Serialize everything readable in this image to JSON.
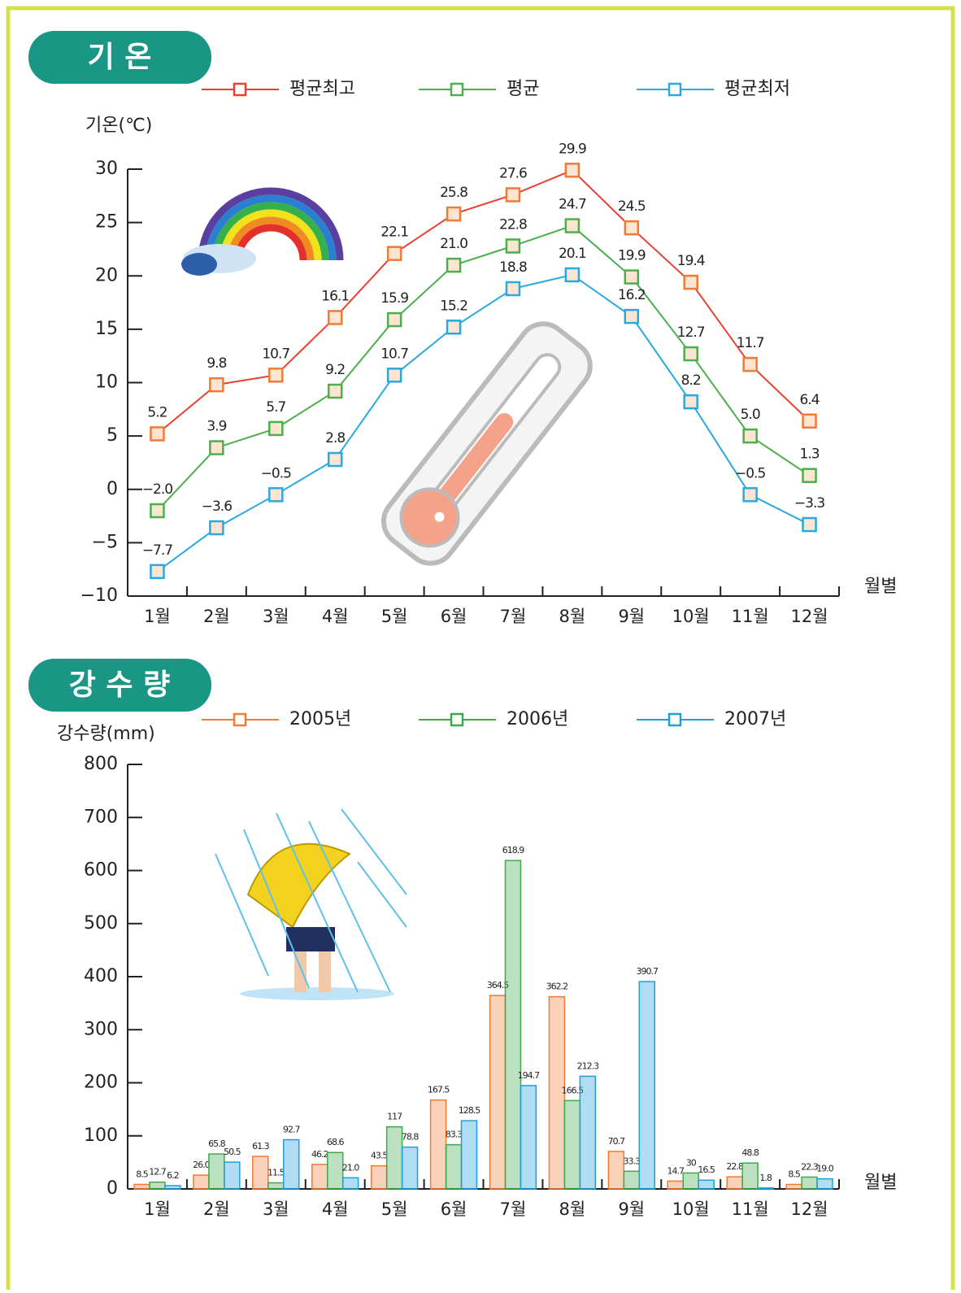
{
  "chart_data": [
    {
      "type": "line",
      "title": "기 온",
      "y_label": "기온(℃)",
      "x_label": "월별",
      "categories": [
        "1월",
        "2월",
        "3월",
        "4월",
        "5월",
        "6월",
        "7월",
        "8월",
        "9월",
        "10월",
        "11월",
        "12월"
      ],
      "series": [
        {
          "name": "평균최고",
          "color": "#e8412f",
          "values": [
            5.2,
            9.8,
            10.7,
            16.1,
            22.1,
            25.8,
            27.6,
            29.9,
            24.5,
            19.4,
            11.7,
            6.4
          ],
          "value_labels": [
            "5.2",
            "9.8",
            "10.7",
            "16.1",
            "22.1",
            "25.8",
            "27.6",
            "29.9",
            "24.5",
            "19.4",
            "11.7",
            "6.4"
          ]
        },
        {
          "name": "평균",
          "color": "#4cae4c",
          "values": [
            -2.0,
            3.9,
            5.7,
            9.2,
            15.9,
            21.0,
            22.8,
            24.7,
            19.9,
            12.7,
            5.0,
            1.3
          ],
          "value_labels": [
            "−2.0",
            "3.9",
            "5.7",
            "9.2",
            "15.9",
            "21.0",
            "22.8",
            "24.7",
            "19.9",
            "12.7",
            "5.0",
            "1.3"
          ]
        },
        {
          "name": "평균최저",
          "color": "#29a9e0",
          "values": [
            -7.7,
            -3.6,
            -0.5,
            2.8,
            10.7,
            15.2,
            18.8,
            20.1,
            16.2,
            8.2,
            -0.5,
            -3.3
          ],
          "value_labels": [
            "−7.7",
            "−3.6",
            "−0.5",
            "2.8",
            "10.7",
            "15.2",
            "18.8",
            "20.1",
            "16.2",
            "8.2",
            "−0.5",
            "−3.3"
          ]
        }
      ],
      "ylim": [
        -10,
        30
      ],
      "yticks": [
        {
          "value": -10,
          "label": "−10"
        },
        {
          "value": -5,
          "label": "−5"
        },
        0,
        5,
        10,
        15,
        20,
        25,
        30
      ]
    },
    {
      "type": "bar",
      "title": "강 수 량",
      "y_label": "강수량(mm)",
      "x_label": "월별",
      "categories": [
        "1월",
        "2월",
        "3월",
        "4월",
        "5월",
        "6월",
        "7월",
        "8월",
        "9월",
        "10월",
        "11월",
        "12월"
      ],
      "series": [
        {
          "name": "2005년",
          "color": "#f07a36",
          "values": [
            8.5,
            26.0,
            61.3,
            46.2,
            43.5,
            167.5,
            364.5,
            362.2,
            70.7,
            14.7,
            22.8,
            8.5
          ],
          "value_labels": [
            "8.5",
            "26.0",
            "61.3",
            "46.2",
            "43.5",
            "167.5",
            "364.5",
            "362.2",
            "70.7",
            "14.7",
            "22.8",
            "8.5"
          ]
        },
        {
          "name": "2006년",
          "color": "#3fa94a",
          "values": [
            12.7,
            65.8,
            11.5,
            68.6,
            117,
            83.3,
            618.9,
            166.5,
            33.3,
            30,
            48.8,
            22.3
          ],
          "value_labels": [
            "12.7",
            "65.8",
            "11.5",
            "68.6",
            "117",
            "83.3",
            "618.9",
            "166.5",
            "33.3",
            "30",
            "48.8",
            "22.3"
          ]
        },
        {
          "name": "2007년",
          "color": "#1e9fdc",
          "values": [
            6.2,
            50.5,
            92.7,
            21.0,
            78.8,
            128.5,
            194.7,
            212.3,
            390.7,
            16.5,
            1.8,
            19.0
          ],
          "value_labels": [
            "6.2",
            "50.5",
            "92.7",
            "21.0",
            "78.8",
            "128.5",
            "194.7",
            "212.3",
            "390.7",
            "16.5",
            "1.8",
            "19.0"
          ]
        }
      ],
      "ylim": [
        0,
        800
      ],
      "yticks": [
        0,
        100,
        200,
        300,
        400,
        500,
        600,
        700,
        800
      ]
    }
  ]
}
